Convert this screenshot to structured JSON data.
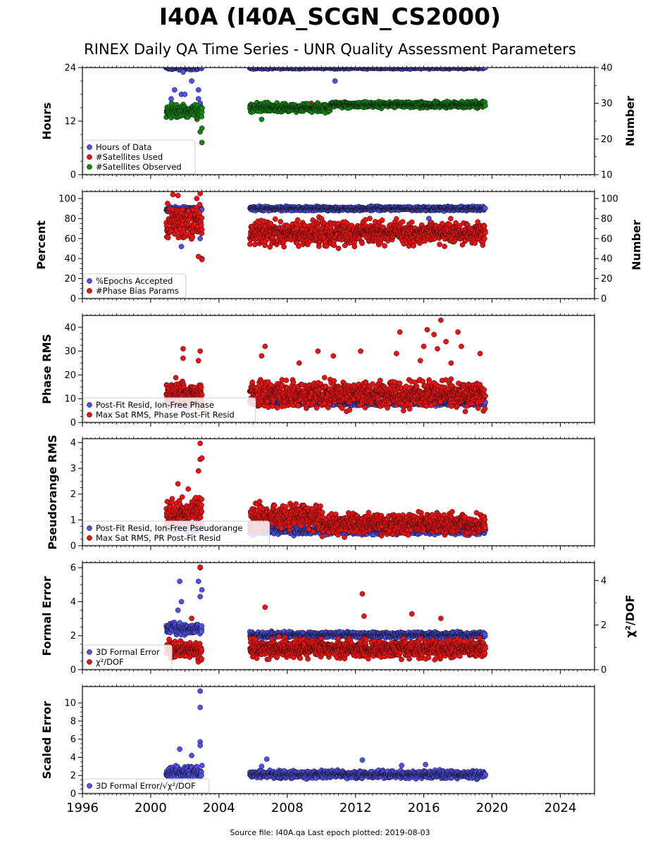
{
  "title": "I40A (I40A_SCGN_CS2000)",
  "subtitle": "RINEX Daily QA Time Series - UNR Quality Assessment Parameters",
  "footer": "Source file: I40A.qa Last epoch plotted: 2019-08-03",
  "colors": {
    "blue": "#5050f0",
    "red": "#ee1111",
    "green": "#118811",
    "edge": "#111111"
  },
  "x_axis": {
    "min": 1996,
    "max": 2026,
    "ticks": [
      1996,
      2000,
      2004,
      2008,
      2012,
      2016,
      2020,
      2024
    ],
    "tick_labels": [
      "1996",
      "2000",
      "2004",
      "2008",
      "2012",
      "2016",
      "2020",
      "2024"
    ]
  },
  "chart_data": [
    {
      "type": "scatter",
      "ylabel": "Hours",
      "ylim": [
        0,
        24
      ],
      "yticks": [
        0,
        12,
        24
      ],
      "ytick_labels": [
        "0",
        "12",
        "24"
      ],
      "y2label": "Number",
      "y2lim": [
        10,
        40
      ],
      "y2ticks": [
        10,
        20,
        30,
        40
      ],
      "y2tick_labels": [
        "10",
        "20",
        "30",
        "40"
      ],
      "legend_position": "lower-left",
      "series": [
        {
          "name": "Hours of Data",
          "color": "blue",
          "axis": "left",
          "segments": [
            {
              "x": [
                2000.9,
                2003.0
              ],
              "center": 24,
              "spread": 0.3
            },
            {
              "x": [
                2005.8,
                2019.6
              ],
              "center": 24,
              "spread": 0.2
            }
          ],
          "outliers": [
            [
              2001.2,
              17
            ],
            [
              2001.4,
              19
            ],
            [
              2001.8,
              18
            ],
            [
              2002.0,
              18
            ],
            [
              2002.4,
              21
            ],
            [
              2002.8,
              19
            ],
            [
              2002.9,
              16
            ],
            [
              2003.0,
              15
            ],
            [
              2002.8,
              17
            ],
            [
              2001.9,
              23
            ],
            [
              2010.8,
              21
            ]
          ]
        },
        {
          "name": "#Satellites Used",
          "color": "red",
          "axis": "right",
          "segments": [],
          "outliers": [
            [
              2009.4,
              30
            ]
          ]
        },
        {
          "name": "#Satellites Observed",
          "color": "green",
          "axis": "right",
          "segments": [
            {
              "x": [
                2000.9,
                2003.0
              ],
              "center": 27.8,
              "spread": 1.3
            },
            {
              "x": [
                2005.8,
                2010.5
              ],
              "center": 28.8,
              "spread": 0.9
            },
            {
              "x": [
                2010.5,
                2019.6
              ],
              "center": 29.6,
              "spread": 0.6
            }
          ],
          "outliers": [
            [
              2003.0,
              19
            ],
            [
              2002.9,
              22
            ],
            [
              2003.0,
              23
            ],
            [
              2006.5,
              25.5
            ]
          ]
        }
      ],
      "legend": [
        "Hours of Data",
        "#Satellites Used",
        "#Satellites Observed"
      ]
    },
    {
      "type": "scatter",
      "ylabel": "Percent",
      "ylim": [
        0,
        107
      ],
      "yticks": [
        0,
        20,
        40,
        60,
        80,
        100
      ],
      "ytick_labels": [
        "0",
        "20",
        "40",
        "60",
        "80",
        "100"
      ],
      "y2label": "Number",
      "y2lim": [
        0,
        107
      ],
      "y2ticks": [
        0,
        20,
        40,
        60,
        80,
        100
      ],
      "y2tick_labels": [
        "0",
        "20",
        "40",
        "60",
        "80",
        "100"
      ],
      "legend_position": "lower-left",
      "series": [
        {
          "name": "%Epochs Accepted",
          "color": "blue",
          "axis": "left",
          "segments": [
            {
              "x": [
                2000.9,
                2003.0
              ],
              "center": 89,
              "spread": 2
            },
            {
              "x": [
                2005.8,
                2019.6
              ],
              "center": 90,
              "spread": 1.5
            }
          ],
          "outliers": [
            [
              2001.8,
              52
            ],
            [
              2002.9,
              60
            ],
            [
              2003.0,
              40
            ],
            [
              2016.3,
              80
            ]
          ]
        },
        {
          "name": "#Phase Bias Params",
          "color": "red",
          "axis": "right",
          "segments": [
            {
              "x": [
                2000.9,
                2003.0
              ],
              "center": 76,
              "spread": 12
            },
            {
              "x": [
                2005.8,
                2012.0
              ],
              "center": 65,
              "spread": 9
            },
            {
              "x": [
                2012.0,
                2019.6
              ],
              "center": 66,
              "spread": 8
            }
          ],
          "outliers": [
            [
              2001.3,
              104
            ],
            [
              2001.6,
              103
            ],
            [
              2002.9,
              105
            ],
            [
              2002.7,
              100
            ],
            [
              2003.0,
              39
            ],
            [
              2002.8,
              42
            ]
          ]
        }
      ],
      "legend": [
        "%Epochs Accepted",
        "#Phase Bias Params"
      ]
    },
    {
      "type": "scatter",
      "ylabel": "Phase RMS",
      "ylim": [
        0,
        45
      ],
      "yticks": [
        0,
        10,
        20,
        30,
        40
      ],
      "ytick_labels": [
        "0",
        "10",
        "20",
        "30",
        "40"
      ],
      "legend_position": "lower-left",
      "series": [
        {
          "name": "Post-Fit Resid, Ion-Free Phase",
          "color": "blue",
          "axis": "left",
          "segments": [
            {
              "x": [
                2000.9,
                2003.0
              ],
              "center": 8.5,
              "spread": 0.8
            },
            {
              "x": [
                2005.8,
                2019.6
              ],
              "center": 8.3,
              "spread": 0.8
            }
          ],
          "outliers": []
        },
        {
          "name": "Max Sat RMS, Phase Post-Fit Resid",
          "color": "red",
          "axis": "left",
          "segments": [
            {
              "x": [
                2000.9,
                2003.0
              ],
              "center": 12,
              "spread": 4
            },
            {
              "x": [
                2005.8,
                2019.6
              ],
              "center": 12,
              "spread": 4
            }
          ],
          "outliers": [
            [
              2001.9,
              31
            ],
            [
              2001.9,
              27
            ],
            [
              2002.9,
              30
            ],
            [
              2002.8,
              26
            ],
            [
              2006.7,
              32
            ],
            [
              2006.5,
              28
            ],
            [
              2009.8,
              30
            ],
            [
              2012.3,
              30
            ],
            [
              2014.6,
              38
            ],
            [
              2014.4,
              29
            ],
            [
              2016.2,
              39
            ],
            [
              2016.6,
              37
            ],
            [
              2017.0,
              43
            ],
            [
              2017.3,
              34
            ],
            [
              2018.0,
              38
            ],
            [
              2018.2,
              32
            ],
            [
              2019.3,
              29
            ],
            [
              2016.0,
              32
            ],
            [
              2016.8,
              31
            ],
            [
              2017.6,
              25
            ],
            [
              2015.8,
              26
            ],
            [
              2010.7,
              28
            ],
            [
              2008.7,
              25
            ]
          ]
        }
      ],
      "legend": [
        "Post-Fit Resid, Ion-Free Phase",
        "Max Sat RMS, Phase Post-Fit Resid"
      ]
    },
    {
      "type": "scatter",
      "ylabel": "Pseudorange RMS",
      "ylim": [
        0,
        4.15
      ],
      "yticks": [
        0,
        1,
        2,
        3,
        4
      ],
      "ytick_labels": [
        "0",
        "1",
        "2",
        "3",
        "4"
      ],
      "legend_position": "lower-left",
      "series": [
        {
          "name": "Post-Fit Resid, Ion-Free Pseudorange",
          "color": "blue",
          "axis": "left",
          "segments": [
            {
              "x": [
                2000.9,
                2003.0
              ],
              "center": 0.75,
              "spread": 0.12
            },
            {
              "x": [
                2005.8,
                2019.6
              ],
              "center": 0.6,
              "spread": 0.12
            }
          ],
          "outliers": []
        },
        {
          "name": "Max Sat RMS, PR Post-Fit Resid",
          "color": "red",
          "axis": "left",
          "segments": [
            {
              "x": [
                2000.9,
                2003.0
              ],
              "center": 1.3,
              "spread": 0.35
            },
            {
              "x": [
                2005.8,
                2010.0
              ],
              "center": 1.15,
              "spread": 0.35
            },
            {
              "x": [
                2010.0,
                2019.6
              ],
              "center": 0.85,
              "spread": 0.3
            }
          ],
          "outliers": [
            [
              2002.9,
              3.97
            ],
            [
              2002.9,
              3.35
            ],
            [
              2003.0,
              3.4
            ],
            [
              2002.8,
              2.9
            ],
            [
              2001.6,
              2.4
            ],
            [
              2002.2,
              2.2
            ]
          ]
        }
      ],
      "legend": [
        "Post-Fit Resid, Ion-Free Pseudorange",
        "Max Sat RMS, PR Post-Fit Resid"
      ]
    },
    {
      "type": "scatter",
      "ylabel": "Formal Error",
      "ylim": [
        0,
        6.3
      ],
      "yticks": [
        0,
        2,
        4,
        6
      ],
      "ytick_labels": [
        "0",
        "2",
        "4",
        "6"
      ],
      "y2label": "χ²/DOF",
      "y2lim": [
        0,
        4.8
      ],
      "y2ticks": [
        0,
        2,
        4
      ],
      "y2tick_labels": [
        "0",
        "2",
        "4"
      ],
      "legend_position": "lower-left",
      "series": [
        {
          "name": "3D Formal Error",
          "color": "blue",
          "axis": "left",
          "segments": [
            {
              "x": [
                2000.9,
                2003.0
              ],
              "center": 2.4,
              "spread": 0.25
            },
            {
              "x": [
                2005.8,
                2019.6
              ],
              "center": 2.05,
              "spread": 0.12
            }
          ],
          "outliers": [
            [
              2002.9,
              6.0
            ],
            [
              2002.8,
              5.2
            ],
            [
              2003.0,
              4.7
            ],
            [
              2001.7,
              5.2
            ],
            [
              2001.8,
              4.0
            ],
            [
              2001.6,
              3.5
            ],
            [
              2002.9,
              4.3
            ]
          ]
        },
        {
          "name": "χ²/DOF",
          "color": "red",
          "axis": "right",
          "segments": [
            {
              "x": [
                2000.9,
                2003.0
              ],
              "center": 0.9,
              "spread": 0.3
            },
            {
              "x": [
                2005.8,
                2019.6
              ],
              "center": 0.95,
              "spread": 0.3
            }
          ],
          "outliers": [
            [
              2002.9,
              4.6
            ],
            [
              2006.7,
              2.8
            ],
            [
              2012.4,
              3.4
            ],
            [
              2012.5,
              2.4
            ],
            [
              2015.3,
              2.5
            ],
            [
              2017.0,
              2.3
            ],
            [
              2002.4,
              2.3
            ]
          ]
        }
      ],
      "legend": [
        "3D Formal Error",
        "χ²/DOF"
      ]
    },
    {
      "type": "scatter",
      "ylabel": "Scaled Error",
      "ylim": [
        0,
        11.8
      ],
      "yticks": [
        0,
        2,
        4,
        6,
        8,
        10
      ],
      "ytick_labels": [
        "0",
        "2",
        "4",
        "6",
        "8",
        "10"
      ],
      "legend_position": "lower-left",
      "series": [
        {
          "name": "3D Formal Error/√χ²/DOF",
          "color": "blue",
          "axis": "left",
          "segments": [
            {
              "x": [
                2000.9,
                2003.0
              ],
              "center": 2.3,
              "spread": 0.5
            },
            {
              "x": [
                2005.8,
                2019.6
              ],
              "center": 2.1,
              "spread": 0.3
            }
          ],
          "outliers": [
            [
              2002.9,
              11.3
            ],
            [
              2002.9,
              9.5
            ],
            [
              2002.9,
              5.7
            ],
            [
              2002.9,
              5.3
            ],
            [
              2001.7,
              4.9
            ],
            [
              2002.4,
              4.2
            ],
            [
              2006.8,
              3.8
            ],
            [
              2012.4,
              3.7
            ],
            [
              2006.5,
              3.0
            ],
            [
              2016.1,
              3.2
            ],
            [
              2014.7,
              3.1
            ]
          ]
        }
      ],
      "legend": [
        "3D Formal Error/√χ²/DOF"
      ]
    }
  ]
}
